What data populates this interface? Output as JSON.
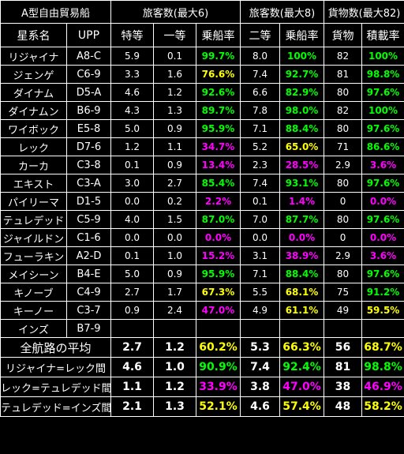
{
  "title": "A型自由貿易船",
  "groups": {
    "g1": "旅客数(最大6)",
    "g2": "旅客数(最大8)",
    "g3": "貨物数(最大82)"
  },
  "headers": [
    "星系名",
    "UPP",
    "特等",
    "一等",
    "乗船率",
    "二等",
    "乗船率",
    "貨物",
    "積載率"
  ],
  "rows": [
    {
      "name": "リジャイナ",
      "upp": "A8-C",
      "c1": "5.9",
      "c2": "0.1",
      "c3": "99.7%",
      "c4": "8.0",
      "c5": "100%",
      "c6": "82",
      "c7": "100%",
      "k3": "g",
      "k5": "g",
      "k7": "g"
    },
    {
      "name": "ジェンゲ",
      "upp": "C6-9",
      "c1": "3.3",
      "c2": "1.6",
      "c3": "76.6%",
      "c4": "7.4",
      "c5": "92.7%",
      "c6": "81",
      "c7": "98.8%",
      "k3": "y",
      "k5": "g",
      "k7": "g"
    },
    {
      "name": "ダイナム",
      "upp": "D5-A",
      "c1": "4.6",
      "c2": "1.2",
      "c3": "92.6%",
      "c4": "6.6",
      "c5": "82.9%",
      "c6": "80",
      "c7": "97.6%",
      "k3": "g",
      "k5": "g",
      "k7": "g"
    },
    {
      "name": "ダイナムン",
      "upp": "B6-9",
      "c1": "4.3",
      "c2": "1.3",
      "c3": "89.7%",
      "c4": "7.8",
      "c5": "98.0%",
      "c6": "82",
      "c7": "100%",
      "k3": "g",
      "k5": "g",
      "k7": "g"
    },
    {
      "name": "ワイボック",
      "upp": "E5-8",
      "c1": "5.0",
      "c2": "0.9",
      "c3": "95.9%",
      "c4": "7.1",
      "c5": "88.4%",
      "c6": "80",
      "c7": "97.6%",
      "k3": "g",
      "k5": "g",
      "k7": "g"
    },
    {
      "name": "レック",
      "upp": "D7-6",
      "c1": "1.2",
      "c2": "1.1",
      "c3": "34.7%",
      "c4": "5.2",
      "c5": "65.0%",
      "c6": "71",
      "c7": "86.6%",
      "k3": "m",
      "k5": "y",
      "k7": "g"
    },
    {
      "name": "カーカ",
      "upp": "C3-8",
      "c1": "0.1",
      "c2": "0.9",
      "c3": "13.4%",
      "c4": "2.3",
      "c5": "28.5%",
      "c6": "2.9",
      "c7": "3.6%",
      "k3": "m",
      "k5": "m",
      "k7": "m"
    },
    {
      "name": "エキスト",
      "upp": "C3-A",
      "c1": "3.0",
      "c2": "2.7",
      "c3": "85.4%",
      "c4": "7.4",
      "c5": "93.1%",
      "c6": "80",
      "c7": "97.6%",
      "k3": "g",
      "k5": "g",
      "k7": "g"
    },
    {
      "name": "パイリーマ",
      "upp": "D1-5",
      "c1": "0.0",
      "c2": "0.2",
      "c3": "2.2%",
      "c4": "0.1",
      "c5": "1.4%",
      "c6": "0",
      "c7": "0.0%",
      "k3": "m",
      "k5": "m",
      "k7": "m"
    },
    {
      "name": "テュレデッド",
      "upp": "C5-9",
      "c1": "4.0",
      "c2": "1.5",
      "c3": "87.0%",
      "c4": "7.0",
      "c5": "87.7%",
      "c6": "80",
      "c7": "97.6%",
      "k3": "g",
      "k5": "g",
      "k7": "g"
    },
    {
      "name": "ジャイルドン",
      "upp": "C1-6",
      "c1": "0.0",
      "c2": "0.0",
      "c3": "0.0%",
      "c4": "0.0",
      "c5": "0.0%",
      "c6": "0",
      "c7": "0.0%",
      "k3": "m",
      "k5": "m",
      "k7": "m"
    },
    {
      "name": "フューラキン",
      "upp": "A2-D",
      "c1": "0.1",
      "c2": "1.0",
      "c3": "15.2%",
      "c4": "3.1",
      "c5": "38.9%",
      "c6": "2.9",
      "c7": "3.6%",
      "k3": "m",
      "k5": "m",
      "k7": "m"
    },
    {
      "name": "メイシーン",
      "upp": "B4-E",
      "c1": "5.0",
      "c2": "0.9",
      "c3": "95.9%",
      "c4": "7.1",
      "c5": "88.4%",
      "c6": "80",
      "c7": "97.6%",
      "k3": "g",
      "k5": "g",
      "k7": "g"
    },
    {
      "name": "キノーブ",
      "upp": "C4-9",
      "c1": "2.7",
      "c2": "1.7",
      "c3": "67.3%",
      "c4": "5.5",
      "c5": "68.1%",
      "c6": "75",
      "c7": "91.2%",
      "k3": "y",
      "k5": "y",
      "k7": "g"
    },
    {
      "name": "キーノー",
      "upp": "C3-7",
      "c1": "0.9",
      "c2": "2.4",
      "c3": "47.0%",
      "c4": "4.9",
      "c5": "61.1%",
      "c6": "49",
      "c7": "59.5%",
      "k3": "m",
      "k5": "y",
      "k7": "y"
    },
    {
      "name": "インズ",
      "upp": "B7-9",
      "c1": "",
      "c2": "",
      "c3": "",
      "c4": "",
      "c5": "",
      "c6": "",
      "c7": "",
      "k3": "w",
      "k5": "w",
      "k7": "w"
    }
  ],
  "summaries": [
    {
      "label": "全航路の平均",
      "c1": "2.7",
      "c2": "1.2",
      "c3": "60.2%",
      "c4": "5.3",
      "c5": "66.3%",
      "c6": "56",
      "c7": "68.7%",
      "k3": "y",
      "k5": "y",
      "k7": "y"
    },
    {
      "label": "リジャイナ=レック間",
      "c1": "4.6",
      "c2": "1.0",
      "c3": "90.9%",
      "c4": "7.4",
      "c5": "92.4%",
      "c6": "81",
      "c7": "98.8%",
      "k3": "g",
      "k5": "g",
      "k7": "g"
    },
    {
      "label": "レック=テュレデッド間",
      "c1": "1.1",
      "c2": "1.2",
      "c3": "33.9%",
      "c4": "3.8",
      "c5": "47.0%",
      "c6": "38",
      "c7": "46.9%",
      "k3": "m",
      "k5": "m",
      "k7": "m"
    },
    {
      "label": "テュレデッド=インズ間",
      "c1": "2.1",
      "c2": "1.3",
      "c3": "52.1%",
      "c4": "4.6",
      "c5": "57.4%",
      "c6": "48",
      "c7": "58.2%",
      "k3": "y",
      "k5": "y",
      "k7": "y"
    }
  ],
  "colors": {
    "good": "#00ff00",
    "mid": "#ffff00",
    "low": "#ff00ff",
    "border": "#ffffff",
    "background": "#000000"
  }
}
